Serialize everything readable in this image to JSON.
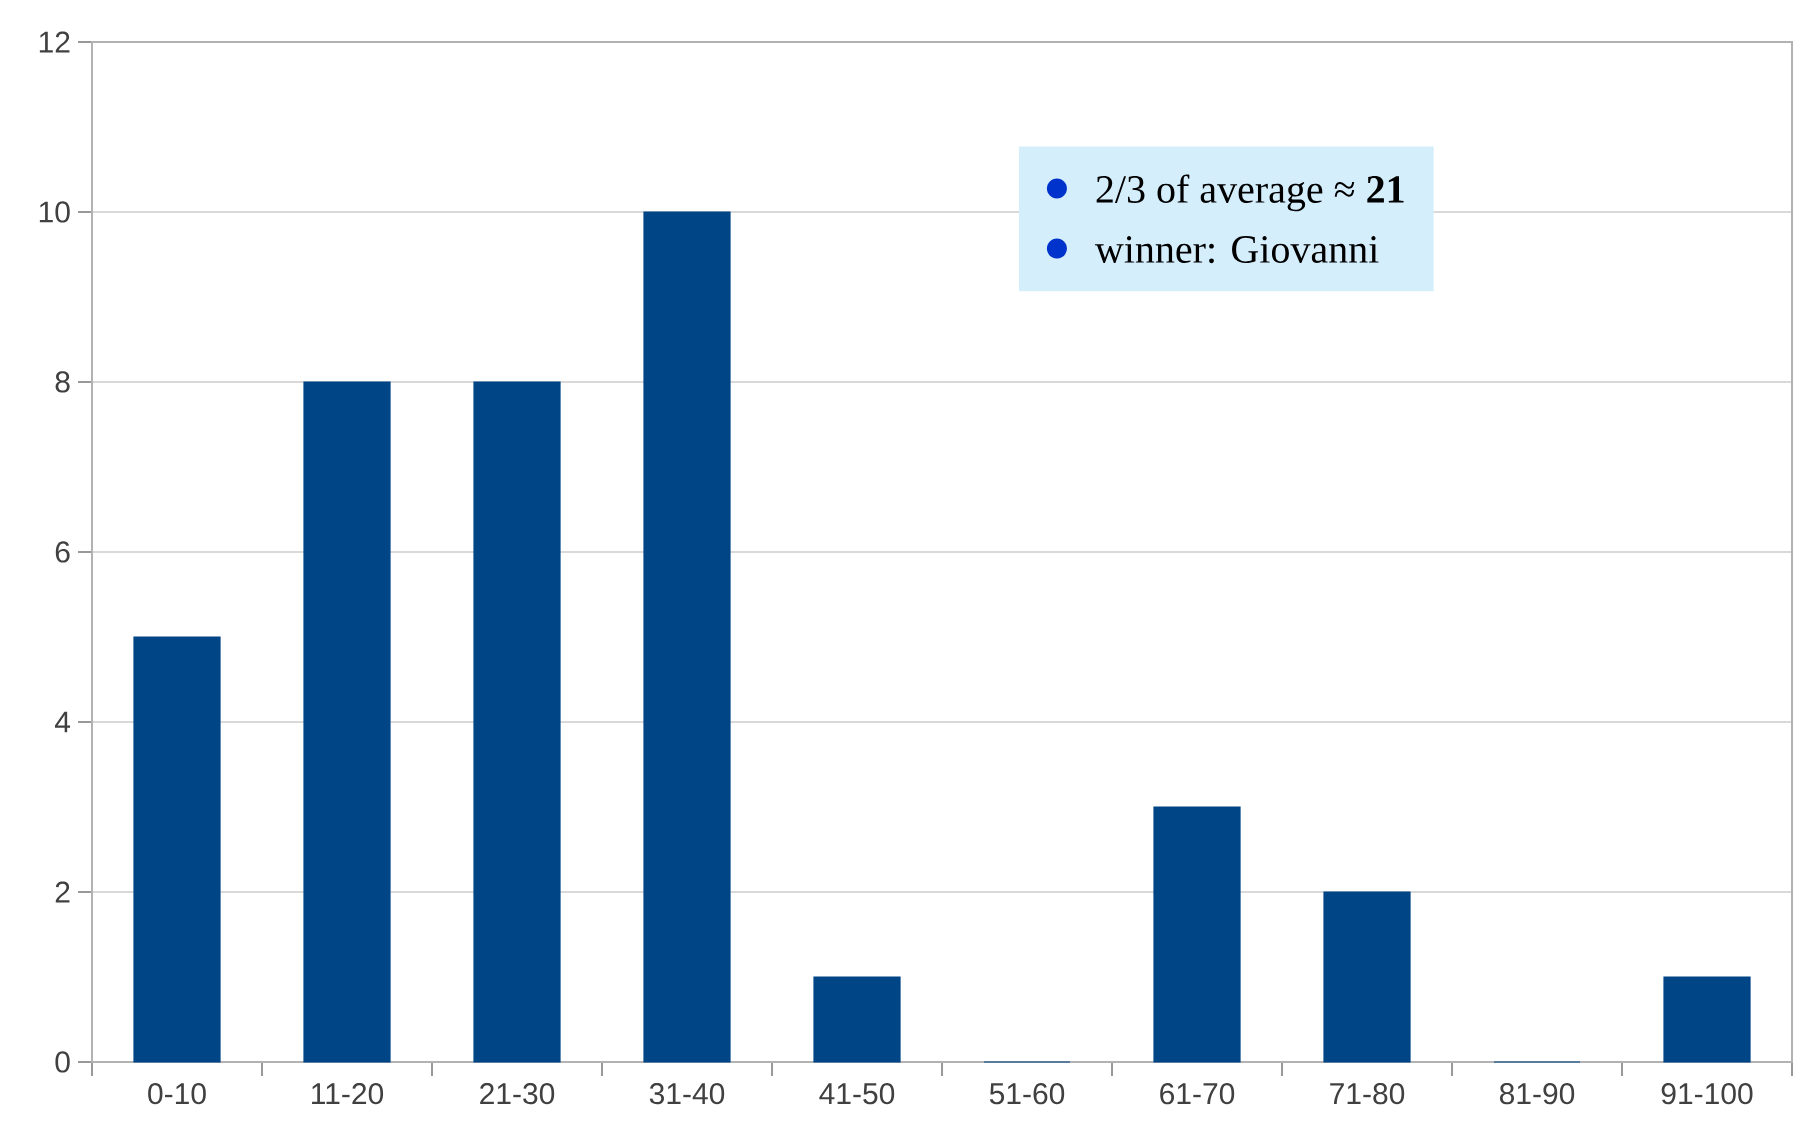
{
  "chart_data": {
    "type": "bar",
    "categories": [
      "0-10",
      "11-20",
      "21-30",
      "31-40",
      "41-50",
      "51-60",
      "61-70",
      "71-80",
      "81-90",
      "91-100"
    ],
    "values": [
      5,
      8,
      8,
      10,
      1,
      0,
      3,
      2,
      0,
      1
    ],
    "color": "#004586",
    "ylim": [
      0,
      12
    ],
    "yticks": [
      0,
      2,
      4,
      6,
      8,
      10,
      12
    ],
    "grid": "y",
    "annotations": [
      "2/3 of average ≈ **21**",
      "winner: Giovanni"
    ]
  }
}
